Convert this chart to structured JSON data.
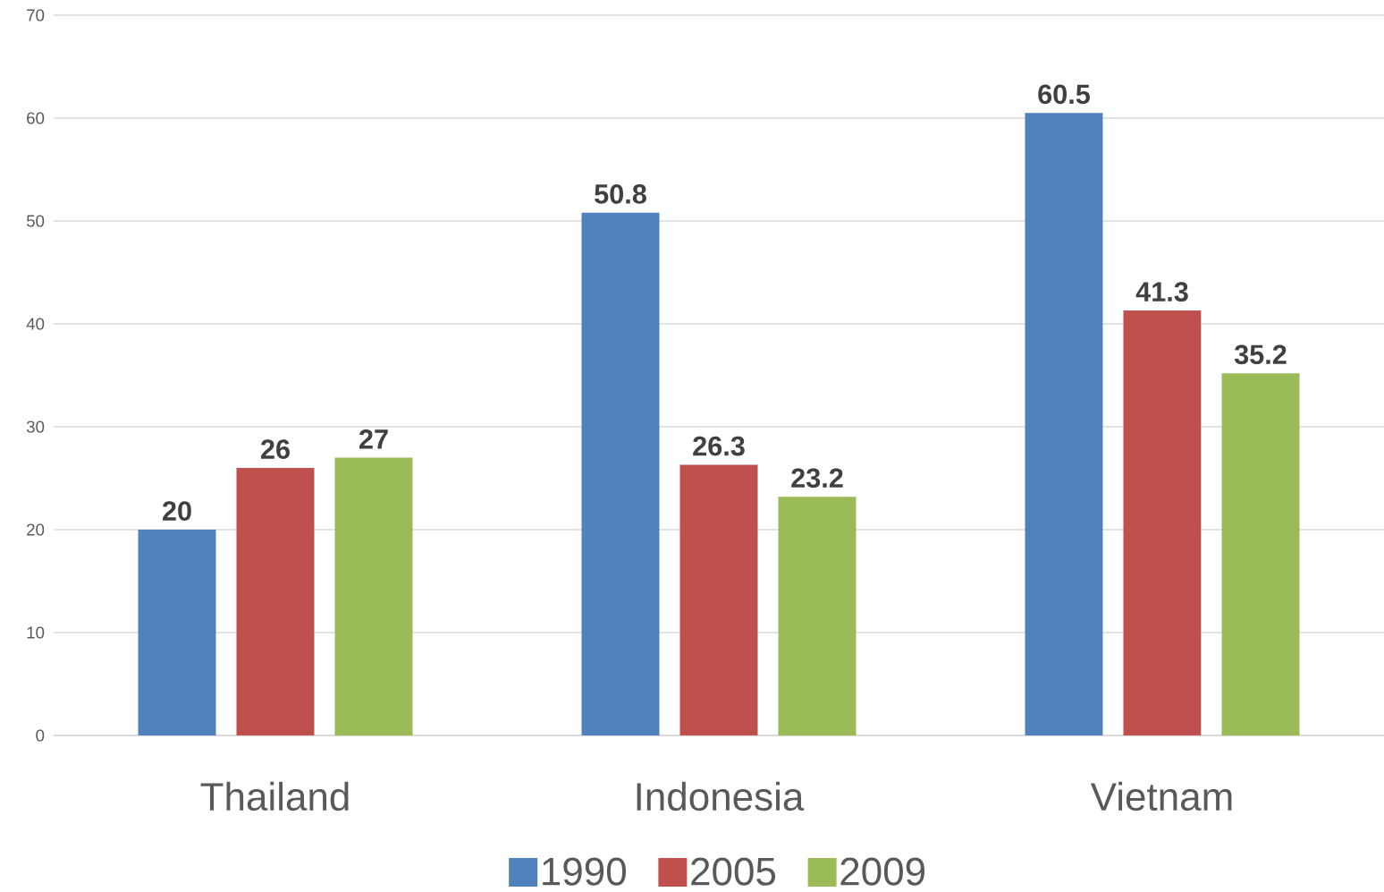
{
  "chart_data": {
    "type": "bar",
    "categories": [
      "Thailand",
      "Indonesia",
      "Vietnam"
    ],
    "series": [
      {
        "name": "1990",
        "color": "#4f81bd",
        "values": [
          20,
          50.8,
          60.5
        ]
      },
      {
        "name": "2005",
        "color": "#c0504d",
        "values": [
          26,
          26.3,
          41.3
        ]
      },
      {
        "name": "2009",
        "color": "#9bbb59",
        "values": [
          27,
          23.2,
          35.2
        ]
      }
    ],
    "ylim": [
      0,
      70
    ],
    "yticks": [
      0,
      10,
      20,
      30,
      40,
      50,
      60,
      70
    ],
    "grid": "y",
    "legend": "bottom",
    "data_labels": true
  }
}
